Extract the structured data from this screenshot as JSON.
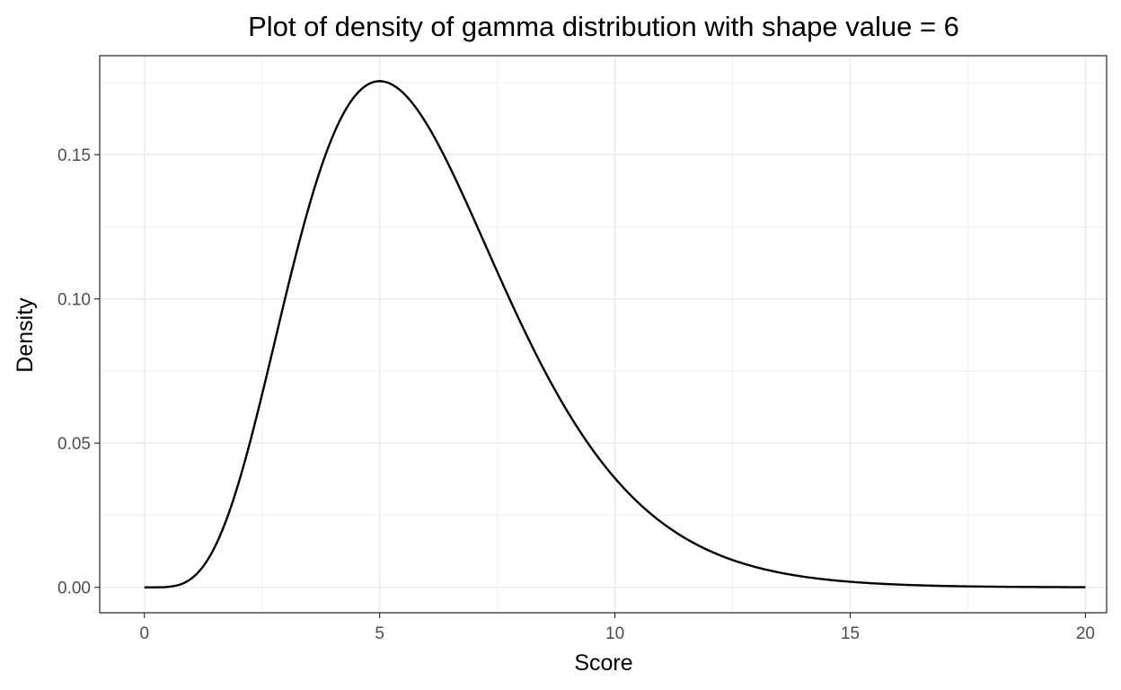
{
  "chart_data": {
    "type": "line",
    "title": "Plot of density of gamma distribution with shape value = 6",
    "xlabel": "Score",
    "ylabel": "Density",
    "xlim": [
      -0.95,
      20.45
    ],
    "ylim": [
      -0.0088,
      0.1843
    ],
    "x_ticks": [
      0,
      5,
      10,
      15,
      20
    ],
    "x_tick_labels": [
      "0",
      "5",
      "10",
      "15",
      "20"
    ],
    "y_ticks": [
      0.0,
      0.05,
      0.1,
      0.15
    ],
    "y_tick_labels": [
      "0.00",
      "0.05",
      "0.10",
      "0.15"
    ],
    "grid": true,
    "legend": "none",
    "line_color": "#000000",
    "series": [
      {
        "distribution": "gamma",
        "shape": 6,
        "rate": 1,
        "x_range": [
          0,
          20
        ],
        "points": 400
      }
    ]
  }
}
